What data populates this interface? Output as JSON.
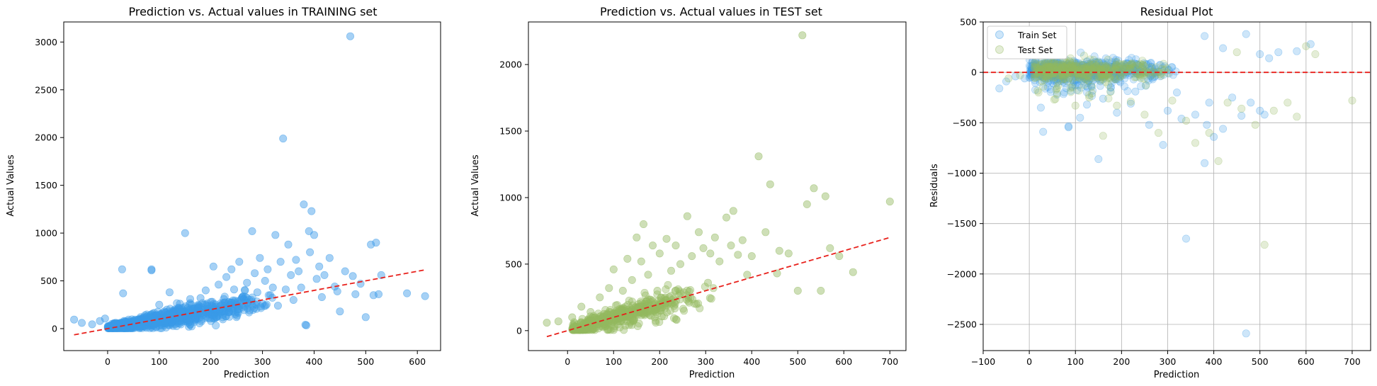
{
  "charts": [
    {
      "title": "Prediction vs. Actual values in TRAINING set",
      "xlabel": "Prediction",
      "ylabel": "Actual Values"
    },
    {
      "title": "Prediction vs. Actual values in TEST set",
      "xlabel": "Prediction",
      "ylabel": "Actual Values"
    },
    {
      "title": "Residual Plot",
      "xlabel": "Prediction",
      "ylabel": "Residuals",
      "legend": [
        "Train Set",
        "Test Set"
      ]
    }
  ],
  "chart_data": [
    {
      "type": "scatter",
      "title": "Prediction vs. Actual values in TRAINING set",
      "xlabel": "Prediction",
      "ylabel": "Actual Values",
      "xlim": [
        -85,
        645
      ],
      "ylim": [
        -230,
        3210
      ],
      "xticks": [
        0,
        100,
        200,
        300,
        400,
        500,
        600
      ],
      "yticks": [
        0,
        500,
        1000,
        1500,
        2000,
        2500,
        3000
      ],
      "grid": false,
      "point_color": "#3a9ae8",
      "reference_line": {
        "x": [
          -65,
          615
        ],
        "y": [
          -65,
          615
        ],
        "color": "#e8201b",
        "style": "dashed"
      },
      "points": [
        [
          -65,
          95
        ],
        [
          -50,
          60
        ],
        [
          -30,
          45
        ],
        [
          -15,
          80
        ],
        [
          -5,
          105
        ],
        [
          10,
          30
        ],
        [
          20,
          45
        ],
        [
          28,
          620
        ],
        [
          30,
          370
        ],
        [
          40,
          80
        ],
        [
          50,
          35
        ],
        [
          60,
          90
        ],
        [
          70,
          120
        ],
        [
          80,
          60
        ],
        [
          85,
          610
        ],
        [
          85,
          620
        ],
        [
          95,
          140
        ],
        [
          100,
          250
        ],
        [
          110,
          180
        ],
        [
          120,
          380
        ],
        [
          125,
          70
        ],
        [
          130,
          200
        ],
        [
          140,
          260
        ],
        [
          150,
          1000
        ],
        [
          150,
          130
        ],
        [
          160,
          310
        ],
        [
          170,
          90
        ],
        [
          175,
          220
        ],
        [
          180,
          320
        ],
        [
          190,
          400
        ],
        [
          195,
          150
        ],
        [
          200,
          280
        ],
        [
          205,
          650
        ],
        [
          210,
          200
        ],
        [
          215,
          460
        ],
        [
          225,
          310
        ],
        [
          230,
          540
        ],
        [
          235,
          170
        ],
        [
          240,
          620
        ],
        [
          245,
          410
        ],
        [
          250,
          250
        ],
        [
          255,
          700
        ],
        [
          260,
          320
        ],
        [
          270,
          480
        ],
        [
          275,
          190
        ],
        [
          280,
          1020
        ],
        [
          285,
          580
        ],
        [
          290,
          380
        ],
        [
          295,
          740
        ],
        [
          300,
          260
        ],
        [
          305,
          500
        ],
        [
          310,
          620
        ],
        [
          315,
          350
        ],
        [
          320,
          430
        ],
        [
          325,
          980
        ],
        [
          330,
          240
        ],
        [
          335,
          700
        ],
        [
          340,
          1990
        ],
        [
          345,
          410
        ],
        [
          350,
          880
        ],
        [
          355,
          560
        ],
        [
          360,
          300
        ],
        [
          365,
          720
        ],
        [
          370,
          600
        ],
        [
          375,
          430
        ],
        [
          380,
          1300
        ],
        [
          383,
          40
        ],
        [
          385,
          35
        ],
        [
          390,
          1020
        ],
        [
          392,
          800
        ],
        [
          395,
          1230
        ],
        [
          400,
          980
        ],
        [
          405,
          520
        ],
        [
          410,
          650
        ],
        [
          415,
          330
        ],
        [
          420,
          560
        ],
        [
          430,
          740
        ],
        [
          440,
          440
        ],
        [
          445,
          390
        ],
        [
          450,
          180
        ],
        [
          460,
          600
        ],
        [
          470,
          3060
        ],
        [
          475,
          550
        ],
        [
          480,
          360
        ],
        [
          490,
          470
        ],
        [
          500,
          120
        ],
        [
          510,
          880
        ],
        [
          515,
          350
        ],
        [
          520,
          900
        ],
        [
          525,
          360
        ],
        [
          530,
          560
        ],
        [
          580,
          370
        ],
        [
          615,
          340
        ]
      ],
      "cloud": {
        "xmin": 0,
        "xmax": 330,
        "slope": 0.92,
        "spread": 120,
        "count": 900
      }
    },
    {
      "type": "scatter",
      "title": "Prediction vs. Actual values in TEST set",
      "xlabel": "Prediction",
      "ylabel": "Actual Values",
      "xlim": [
        -85,
        735
      ],
      "ylim": [
        -150,
        2320
      ],
      "xticks": [
        0,
        100,
        200,
        300,
        400,
        500,
        600,
        700
      ],
      "yticks": [
        0,
        500,
        1000,
        1500,
        2000
      ],
      "grid": false,
      "point_color": "#93b960",
      "reference_line": {
        "x": [
          -45,
          700
        ],
        "y": [
          -45,
          700
        ],
        "color": "#e8201b",
        "style": "dashed"
      },
      "points": [
        [
          -45,
          60
        ],
        [
          -20,
          70
        ],
        [
          10,
          100
        ],
        [
          30,
          180
        ],
        [
          50,
          140
        ],
        [
          70,
          250
        ],
        [
          90,
          320
        ],
        [
          100,
          460
        ],
        [
          120,
          300
        ],
        [
          130,
          540
        ],
        [
          140,
          380
        ],
        [
          150,
          700
        ],
        [
          160,
          520
        ],
        [
          165,
          800
        ],
        [
          175,
          420
        ],
        [
          185,
          640
        ],
        [
          195,
          300
        ],
        [
          200,
          580
        ],
        [
          215,
          690
        ],
        [
          225,
          450
        ],
        [
          235,
          640
        ],
        [
          245,
          500
        ],
        [
          260,
          860
        ],
        [
          270,
          560
        ],
        [
          285,
          740
        ],
        [
          295,
          620
        ],
        [
          305,
          360
        ],
        [
          310,
          580
        ],
        [
          320,
          700
        ],
        [
          330,
          520
        ],
        [
          345,
          850
        ],
        [
          355,
          640
        ],
        [
          360,
          900
        ],
        [
          370,
          570
        ],
        [
          380,
          680
        ],
        [
          390,
          420
        ],
        [
          400,
          560
        ],
        [
          415,
          1310
        ],
        [
          430,
          740
        ],
        [
          440,
          1100
        ],
        [
          455,
          430
        ],
        [
          460,
          600
        ],
        [
          480,
          580
        ],
        [
          500,
          300
        ],
        [
          510,
          2220
        ],
        [
          520,
          950
        ],
        [
          535,
          1070
        ],
        [
          550,
          300
        ],
        [
          560,
          1010
        ],
        [
          570,
          620
        ],
        [
          590,
          560
        ],
        [
          620,
          440
        ],
        [
          700,
          970
        ]
      ],
      "cloud": {
        "xmin": 10,
        "xmax": 330,
        "slope": 0.92,
        "spread": 110,
        "count": 500
      }
    },
    {
      "type": "scatter",
      "title": "Residual Plot",
      "xlabel": "Prediction",
      "ylabel": "Residuals",
      "xlim": [
        -100,
        740
      ],
      "ylim": [
        -2760,
        500
      ],
      "xticks": [
        -100,
        0,
        100,
        200,
        300,
        400,
        500,
        600,
        700
      ],
      "yticks": [
        500,
        0,
        -500,
        -1000,
        -1500,
        -2000,
        -2500
      ],
      "grid": true,
      "legend_position": "top-left",
      "zero_line": {
        "y": 0,
        "color": "#e8201b",
        "style": "dashed"
      },
      "series": [
        {
          "name": "Train Set",
          "color": "#3a9ae8",
          "points": [
            [
              -65,
              -160
            ],
            [
              -50,
              -90
            ],
            [
              -30,
              -40
            ],
            [
              -10,
              -60
            ],
            [
              25,
              -350
            ],
            [
              30,
              -590
            ],
            [
              60,
              -220
            ],
            [
              85,
              -535
            ],
            [
              85,
              -545
            ],
            [
              100,
              -130
            ],
            [
              110,
              -450
            ],
            [
              125,
              -320
            ],
            [
              150,
              -860
            ],
            [
              160,
              -260
            ],
            [
              190,
              -400
            ],
            [
              220,
              -310
            ],
            [
              230,
              -190
            ],
            [
              260,
              -520
            ],
            [
              290,
              -720
            ],
            [
              300,
              -380
            ],
            [
              320,
              -200
            ],
            [
              330,
              -460
            ],
            [
              340,
              -1650
            ],
            [
              360,
              -420
            ],
            [
              380,
              -900
            ],
            [
              385,
              -520
            ],
            [
              390,
              -300
            ],
            [
              400,
              -640
            ],
            [
              420,
              -560
            ],
            [
              440,
              -250
            ],
            [
              460,
              -430
            ],
            [
              470,
              -2590
            ],
            [
              480,
              -300
            ],
            [
              500,
              -380
            ],
            [
              510,
              -420
            ],
            [
              520,
              140
            ],
            [
              540,
              200
            ],
            [
              580,
              210
            ],
            [
              610,
              280
            ],
            [
              380,
              360
            ],
            [
              420,
              240
            ],
            [
              470,
              380
            ],
            [
              500,
              180
            ]
          ],
          "cloud": {
            "xmin": 0,
            "xmax": 330,
            "center": 20,
            "spread": 90,
            "count": 700
          }
        },
        {
          "name": "Test Set",
          "color": "#93b960",
          "points": [
            [
              -45,
              -60
            ],
            [
              -20,
              -30
            ],
            [
              20,
              -200
            ],
            [
              60,
              -160
            ],
            [
              100,
              -330
            ],
            [
              130,
              -250
            ],
            [
              160,
              -630
            ],
            [
              190,
              -330
            ],
            [
              220,
              -290
            ],
            [
              250,
              -420
            ],
            [
              280,
              -600
            ],
            [
              310,
              -280
            ],
            [
              340,
              -480
            ],
            [
              360,
              -700
            ],
            [
              390,
              -600
            ],
            [
              410,
              -880
            ],
            [
              430,
              -300
            ],
            [
              460,
              -360
            ],
            [
              490,
              -520
            ],
            [
              510,
              -1710
            ],
            [
              530,
              -380
            ],
            [
              560,
              -300
            ],
            [
              580,
              -440
            ],
            [
              620,
              180
            ],
            [
              700,
              -280
            ],
            [
              450,
              200
            ],
            [
              600,
              260
            ]
          ],
          "cloud": {
            "xmin": 10,
            "xmax": 330,
            "center": 20,
            "spread": 80,
            "count": 400
          }
        }
      ]
    }
  ]
}
